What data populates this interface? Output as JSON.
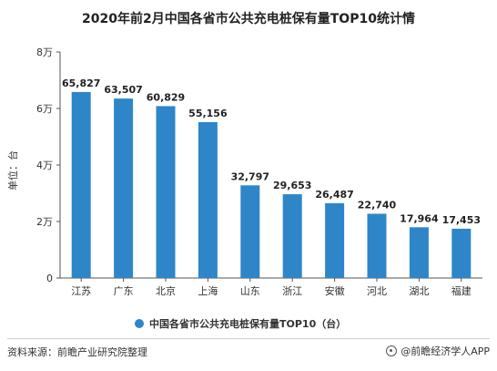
{
  "chart_data": {
    "type": "bar",
    "title": "2020年前2月中国各省市公共充电桩保有量TOP10统计情",
    "ylabel": "单位：台",
    "xlabel": "",
    "categories": [
      "江苏",
      "广东",
      "北京",
      "上海",
      "山东",
      "浙江",
      "安徽",
      "河北",
      "湖北",
      "福建"
    ],
    "series": [
      {
        "name": "中国各省市公共充电桩保有量TOP10（台）",
        "values": [
          65827,
          63507,
          60829,
          55156,
          32797,
          29653,
          26487,
          22740,
          17964,
          17453
        ],
        "labels": [
          "65,827",
          "63,507",
          "60,829",
          "55,156",
          "32,797",
          "29,653",
          "26,487",
          "22,740",
          "17,964",
          "17,453"
        ]
      }
    ],
    "ylim": [
      0,
      80000
    ],
    "yticks": [
      0,
      20000,
      40000,
      60000,
      80000
    ],
    "ytick_labels": [
      "0",
      "2万",
      "4万",
      "6万",
      "8万"
    ],
    "bar_color": "#2e86c8",
    "grid": false,
    "legend_position": "bottom"
  },
  "footer": {
    "source": "资料来源：前瞻产业研究院整理",
    "brand": "@前瞻经济学人APP"
  }
}
